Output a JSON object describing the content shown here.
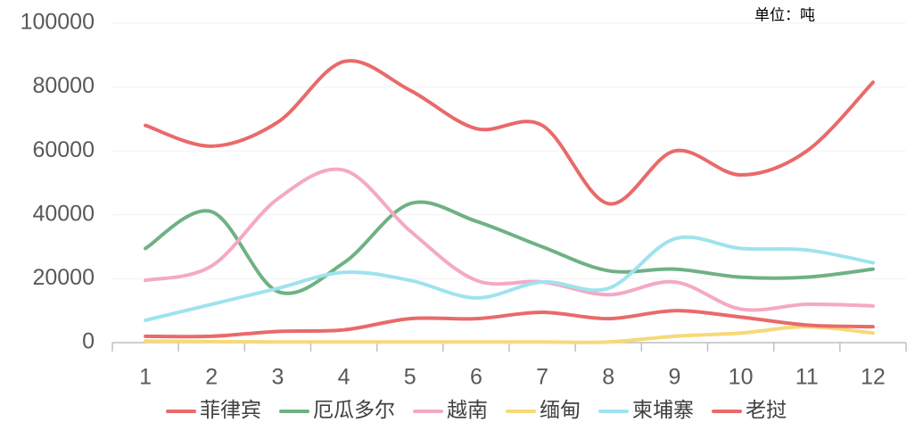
{
  "chart_data": {
    "type": "line",
    "annotation": "单位：吨",
    "categories": [
      "1",
      "2",
      "3",
      "4",
      "5",
      "6",
      "7",
      "8",
      "9",
      "10",
      "11",
      "12"
    ],
    "series": [
      {
        "name": "菲律宾",
        "color": "#e96a6a",
        "values": [
          68000,
          61500,
          69000,
          88000,
          79000,
          67000,
          68000,
          43500,
          60000,
          52500,
          60000,
          81500
        ]
      },
      {
        "name": "厄瓜多尔",
        "color": "#6fb184",
        "values": [
          29500,
          41000,
          16000,
          25000,
          43500,
          38000,
          30000,
          22500,
          23000,
          20500,
          20500,
          23000
        ]
      },
      {
        "name": "越南",
        "color": "#f4a9c4",
        "values": [
          19500,
          24000,
          45000,
          54000,
          35000,
          19500,
          19000,
          15000,
          19000,
          10500,
          12000,
          11500
        ]
      },
      {
        "name": "缅甸",
        "color": "#f7d978",
        "values": [
          500,
          300,
          200,
          200,
          200,
          200,
          200,
          200,
          2000,
          3000,
          5000,
          3000
        ]
      },
      {
        "name": "柬埔寨",
        "color": "#9ee3ed",
        "values": [
          7000,
          12000,
          17000,
          22000,
          19500,
          14000,
          19000,
          17000,
          32500,
          29500,
          29000,
          25000
        ]
      },
      {
        "name": "老挝",
        "color": "#e96a6a",
        "values": [
          2000,
          2000,
          3500,
          4000,
          7500,
          7500,
          9500,
          7500,
          10000,
          8000,
          5500,
          5000
        ]
      }
    ],
    "ylim": [
      0,
      100000
    ],
    "yticks": [
      0,
      20000,
      40000,
      60000,
      80000,
      100000
    ],
    "grid": true
  }
}
